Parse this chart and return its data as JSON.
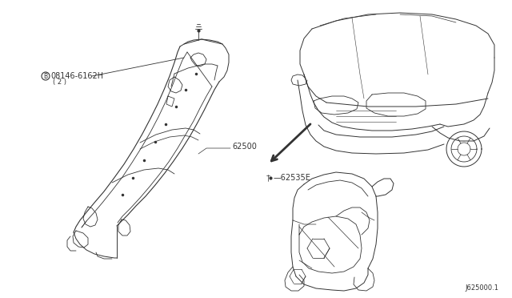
{
  "bg": "#ffffff",
  "line_color": "#333333",
  "label_b": "Ⓑ",
  "label_part1": "08146-6162H",
  "label_part1_sub": "( 2 )",
  "label_62500": "62500",
  "label_62535": "•—62535E",
  "label_diag": "J625000.1",
  "fs_main": 7.0,
  "fs_small": 6.0
}
